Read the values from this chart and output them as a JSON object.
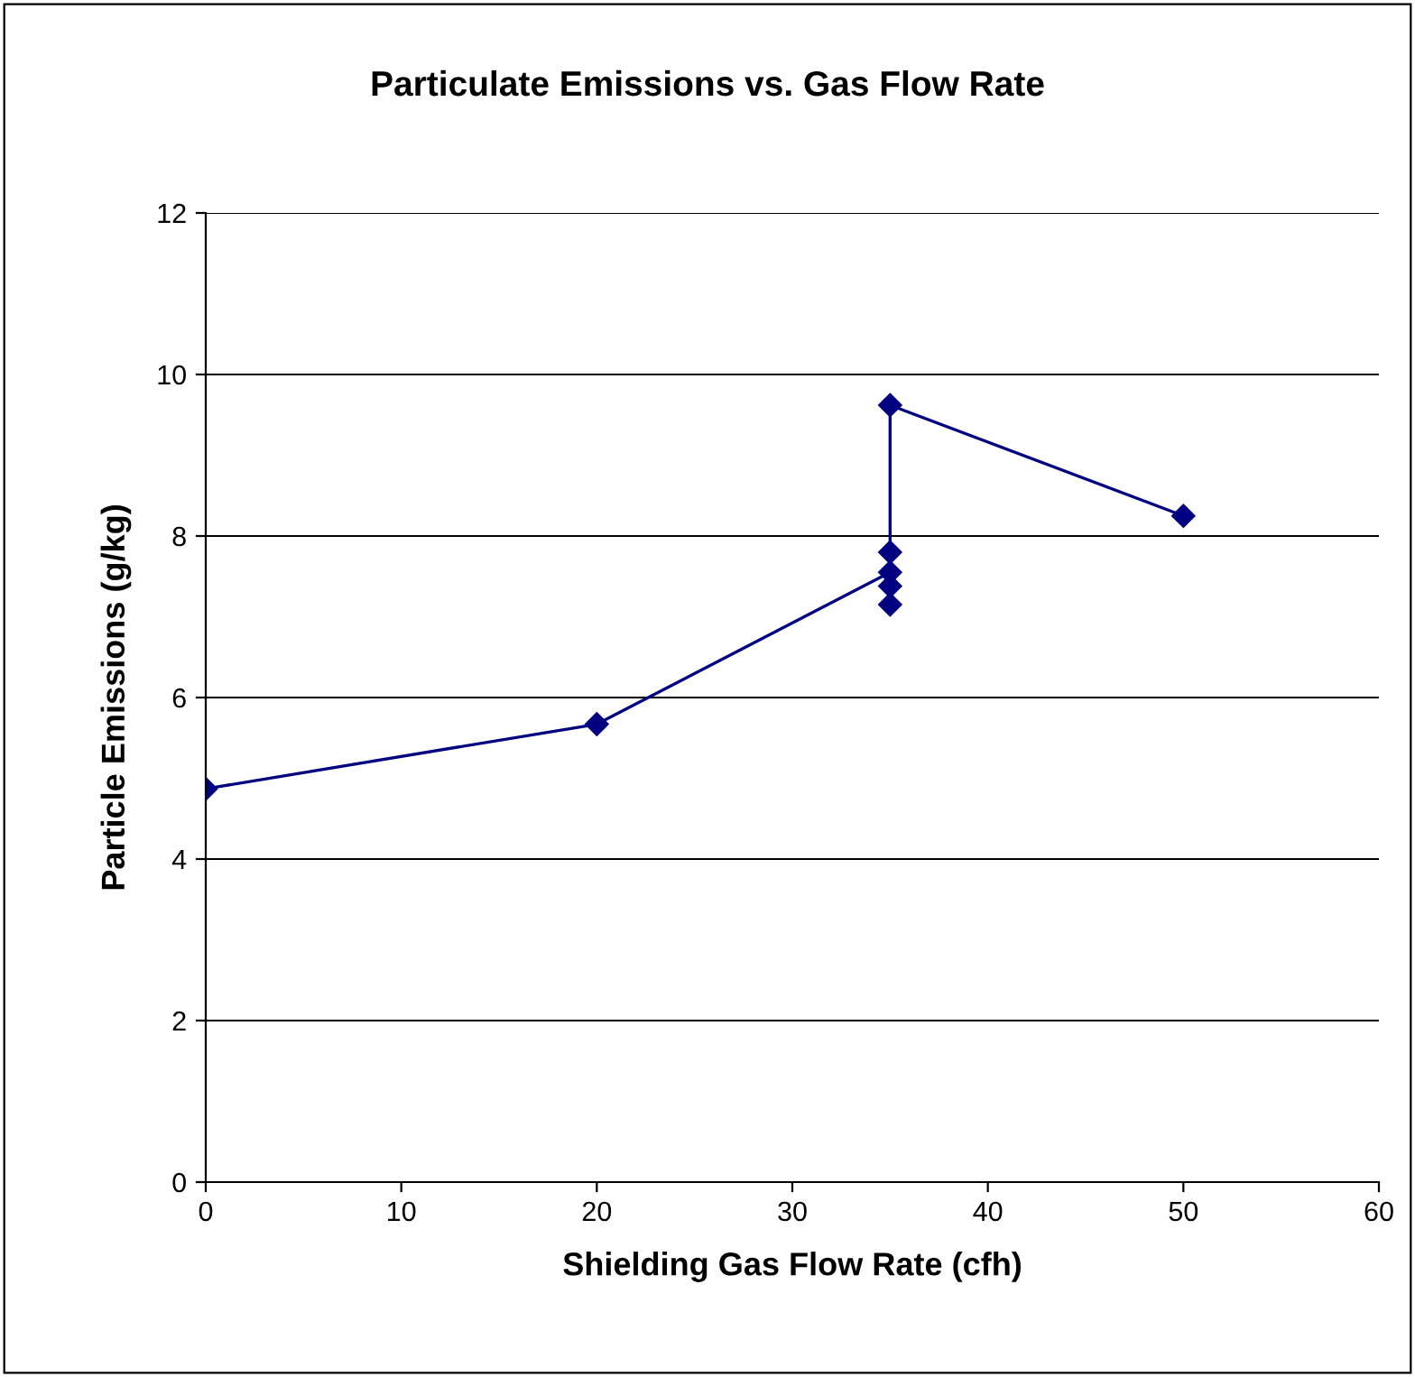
{
  "chart_data": {
    "type": "line",
    "title": "Particulate Emissions vs. Gas Flow Rate",
    "xlabel": "Shielding Gas Flow Rate (cfh)",
    "ylabel": "Particle Emissions (g/kg)",
    "series": [
      {
        "color": "#000080",
        "x": [
          0,
          20,
          35,
          35,
          35,
          35,
          35,
          50
        ],
        "values": [
          4.87,
          5.67,
          7.55,
          7.38,
          7.15,
          7.8,
          9.62,
          8.25
        ]
      }
    ],
    "xlim": [
      0,
      60
    ],
    "xticks": [
      0,
      10,
      20,
      30,
      40,
      50,
      60
    ],
    "ylim": [
      0,
      12
    ],
    "yticks": [
      0,
      2,
      4,
      6,
      8,
      10,
      12
    ],
    "grid": "y",
    "marker": "diamond",
    "line_style": "solid",
    "legend": false
  }
}
